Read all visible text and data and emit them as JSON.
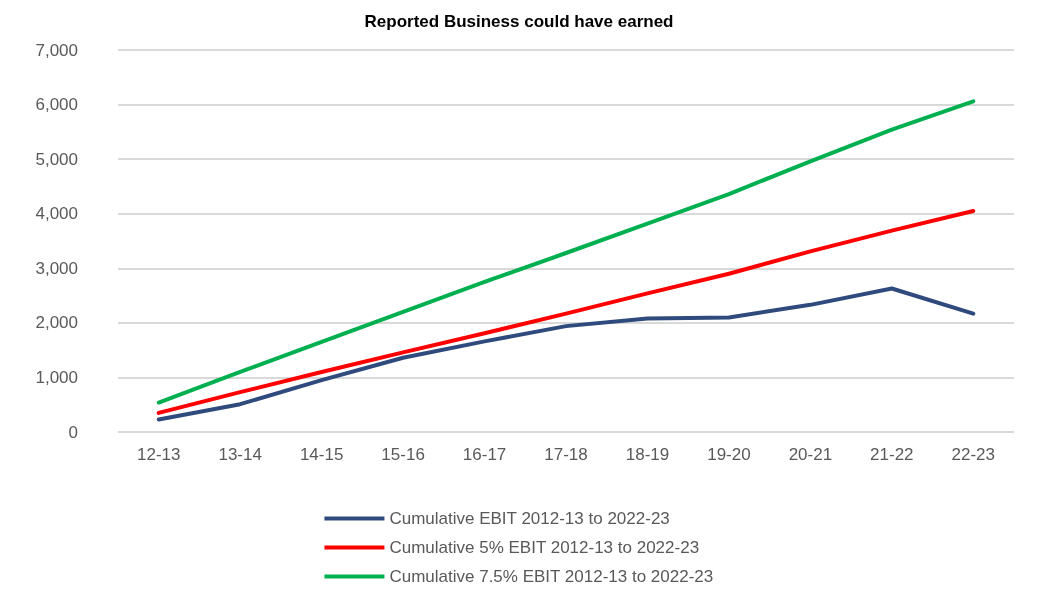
{
  "chart_data": {
    "type": "line",
    "title": "Reported Business could have earned",
    "categories": [
      "12-13",
      "13-14",
      "14-15",
      "15-16",
      "16-17",
      "17-18",
      "18-19",
      "19-20",
      "20-21",
      "21-22",
      "22-23"
    ],
    "series": [
      {
        "name": "Cumulative EBIT 2012-13 to 2022-23",
        "color": "#2f4a7c",
        "values": [
          230,
          510,
          950,
          1360,
          1660,
          1940,
          2080,
          2100,
          2330,
          2630,
          2170
        ]
      },
      {
        "name": "Cumulative 5% EBIT 2012-13 to 2022-23",
        "color": "#ff0000",
        "values": [
          350,
          730,
          1100,
          1460,
          1810,
          2170,
          2540,
          2900,
          3310,
          3690,
          4050
        ]
      },
      {
        "name": "Cumulative 7.5% EBIT 2012-13 to 2022-23",
        "color": "#00b050",
        "values": [
          540,
          1100,
          1650,
          2200,
          2750,
          3280,
          3820,
          4360,
          4960,
          5540,
          6060
        ]
      }
    ],
    "ylim": [
      0,
      7000
    ],
    "yticks": [
      0,
      {
        "value": 1000,
        "label": "1,000"
      },
      {
        "value": 2000,
        "label": "2,000"
      },
      {
        "value": 3000,
        "label": "3,000"
      },
      {
        "value": 4000,
        "label": "4,000"
      },
      {
        "value": 5000,
        "label": "5,000"
      },
      {
        "value": 6000,
        "label": "6,000"
      },
      {
        "value": 7000,
        "label": "7,000"
      }
    ],
    "grid": "y",
    "legend": "bottom",
    "marker": "none",
    "line_style": "solid"
  }
}
